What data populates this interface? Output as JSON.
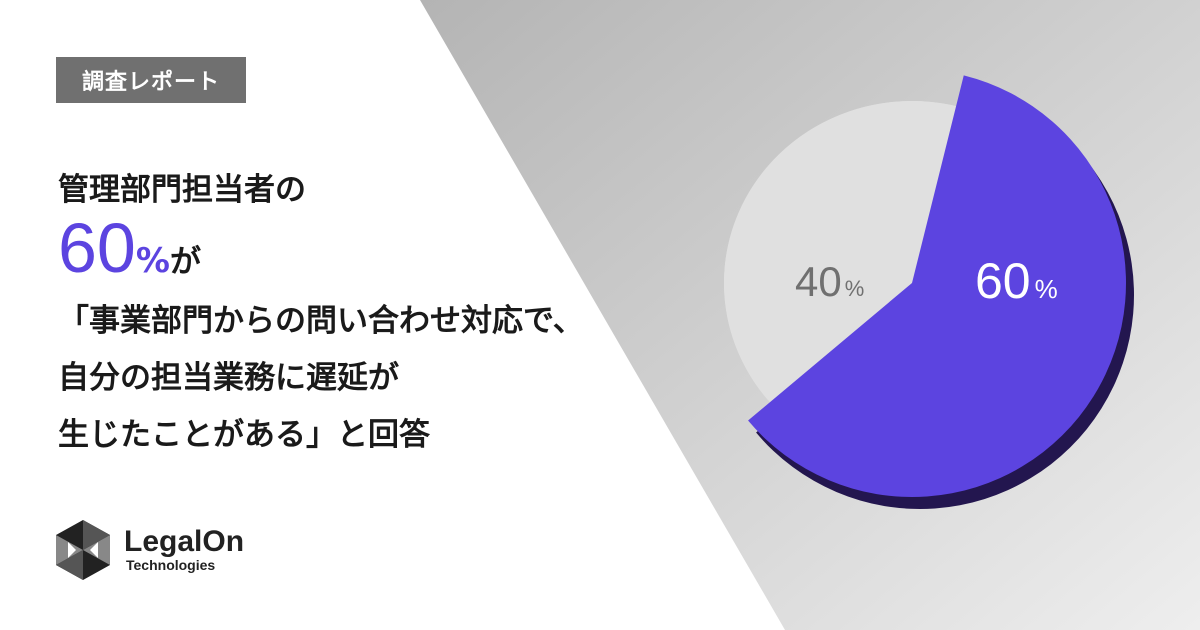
{
  "tag": "調査レポート",
  "headline": {
    "line1": "管理部門担当者の",
    "number": "60",
    "percent": "%",
    "particle": "が",
    "line3": "「事業部門からの問い合わせ対応で、",
    "line4": "自分の担当業務に遅延が",
    "line5": "生じたことがある」と回答"
  },
  "logo": {
    "name": "LegalOn",
    "sub": "Technologies"
  },
  "colors": {
    "accent": "#5c44e0",
    "accent_shadow": "#23164f",
    "rest": "#e0e0e0"
  },
  "chart_data": {
    "type": "pie",
    "slices": [
      {
        "label_value": "60",
        "label_unit": "%",
        "value": 60,
        "color": "#5c44e0"
      },
      {
        "label_value": "40",
        "label_unit": "%",
        "value": 40,
        "color": "#e0e0e0"
      }
    ]
  }
}
